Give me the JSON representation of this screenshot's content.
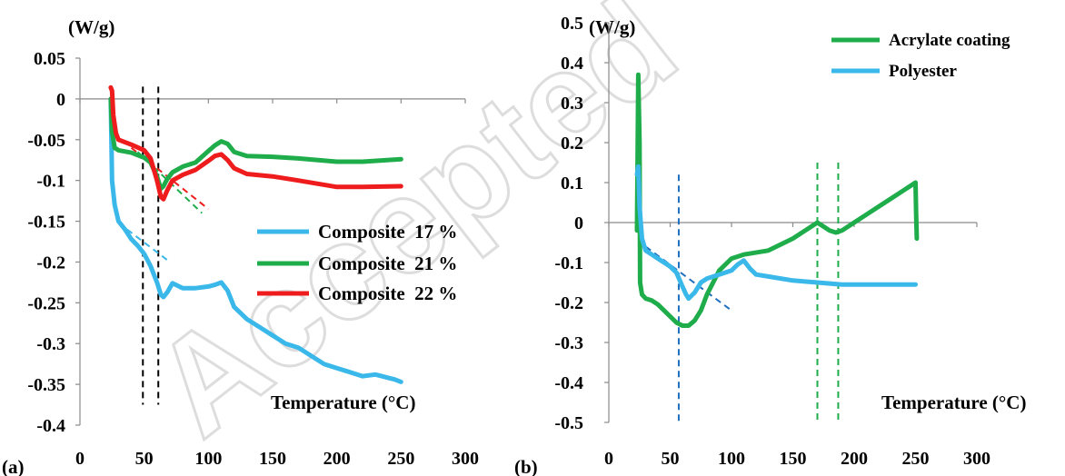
{
  "watermark": "Accepted",
  "chart_data": [
    {
      "type": "line",
      "panel_label": "(a)",
      "ylabel": "(W/g)",
      "xlabel": "Temperature (°C)",
      "xlim": [
        0,
        300
      ],
      "ylim": [
        -0.4,
        0.05
      ],
      "xticks": [
        "0",
        "50",
        "100",
        "150",
        "200",
        "250",
        "300"
      ],
      "yticks": [
        "0.05",
        "0",
        "-0.05",
        "-0.1",
        "-0.15",
        "-0.2",
        "-0.25",
        "-0.3",
        "-0.35",
        "-0.4"
      ],
      "legend_position": "center-right",
      "series": [
        {
          "name": "Composite  17 %",
          "color": "#3ab8ea",
          "x": [
            24,
            25,
            27,
            30,
            35,
            40,
            45,
            50,
            55,
            60,
            63,
            65,
            68,
            72,
            80,
            90,
            100,
            105,
            110,
            115,
            120,
            130,
            140,
            150,
            160,
            170,
            180,
            190,
            200,
            210,
            220,
            230,
            235,
            240,
            245,
            250
          ],
          "y": [
            0.0,
            -0.1,
            -0.13,
            -0.15,
            -0.16,
            -0.172,
            -0.18,
            -0.19,
            -0.205,
            -0.225,
            -0.24,
            -0.243,
            -0.237,
            -0.226,
            -0.232,
            -0.232,
            -0.23,
            -0.228,
            -0.225,
            -0.235,
            -0.255,
            -0.27,
            -0.28,
            -0.29,
            -0.3,
            -0.305,
            -0.315,
            -0.325,
            -0.33,
            -0.335,
            -0.34,
            -0.338,
            -0.34,
            -0.342,
            -0.344,
            -0.347
          ]
        },
        {
          "name": "Composite  21 %",
          "color": "#1fad4b",
          "x": [
            24,
            25,
            27,
            30,
            40,
            50,
            55,
            60,
            63,
            65,
            68,
            72,
            80,
            90,
            100,
            105,
            110,
            115,
            120,
            130,
            150,
            170,
            200,
            220,
            250
          ],
          "y": [
            0.0,
            -0.04,
            -0.06,
            -0.063,
            -0.066,
            -0.072,
            -0.078,
            -0.095,
            -0.11,
            -0.107,
            -0.098,
            -0.09,
            -0.083,
            -0.078,
            -0.064,
            -0.057,
            -0.052,
            -0.055,
            -0.065,
            -0.07,
            -0.071,
            -0.073,
            -0.077,
            -0.077,
            -0.074
          ]
        },
        {
          "name": "Composite  22 %",
          "color": "#ee1c1c",
          "x": [
            24,
            25,
            26,
            28,
            30,
            40,
            50,
            55,
            60,
            63,
            65,
            68,
            72,
            80,
            90,
            100,
            105,
            110,
            115,
            120,
            130,
            150,
            170,
            200,
            220,
            250
          ],
          "y": [
            0.014,
            0.01,
            -0.02,
            -0.042,
            -0.05,
            -0.056,
            -0.063,
            -0.073,
            -0.1,
            -0.12,
            -0.123,
            -0.112,
            -0.1,
            -0.093,
            -0.087,
            -0.076,
            -0.07,
            -0.068,
            -0.075,
            -0.085,
            -0.092,
            -0.095,
            -0.1,
            -0.108,
            -0.108,
            -0.107
          ]
        }
      ],
      "dashed_verticals": [
        {
          "x": 49,
          "y_from": -0.375,
          "y_to": 0.015,
          "color": "#000000"
        },
        {
          "x": 61,
          "y_from": -0.375,
          "y_to": 0.015,
          "color": "#000000"
        }
      ],
      "tangents": [
        {
          "x1": 40,
          "y1": -0.06,
          "x2": 100,
          "y2": -0.135,
          "color": "#ee1c1c"
        },
        {
          "x1": 45,
          "y1": -0.065,
          "x2": 95,
          "y2": -0.14,
          "color": "#1fad4b"
        },
        {
          "x1": 30,
          "y1": -0.152,
          "x2": 70,
          "y2": -0.2,
          "color": "#3ab8ea"
        }
      ]
    },
    {
      "type": "line",
      "panel_label": "(b)",
      "ylabel": "(W/g)",
      "xlabel": "Temperature (°C)",
      "xlim": [
        0,
        300
      ],
      "ylim": [
        -0.5,
        0.5
      ],
      "xticks": [
        "0",
        "50",
        "100",
        "150",
        "200",
        "250",
        "300"
      ],
      "yticks": [
        "0.5",
        "0.4",
        "0.3",
        "0.2",
        "0.1",
        "0",
        "-0.1",
        "-0.2",
        "-0.3",
        "-0.4",
        "-0.5"
      ],
      "legend_position": "top-right",
      "series": [
        {
          "name": "Acrylate coating",
          "color": "#1fad4b",
          "x": [
            23,
            24,
            25,
            25.5,
            27,
            30,
            35,
            40,
            45,
            50,
            55,
            60,
            65,
            70,
            75,
            80,
            90,
            100,
            110,
            130,
            150,
            160,
            165,
            170,
            175,
            180,
            185,
            190,
            200,
            210,
            220,
            230,
            240,
            245,
            250,
            250.5,
            251
          ],
          "y": [
            -0.02,
            0.37,
            0.2,
            -0.15,
            -0.18,
            -0.19,
            -0.195,
            -0.205,
            -0.22,
            -0.235,
            -0.25,
            -0.258,
            -0.258,
            -0.245,
            -0.22,
            -0.18,
            -0.12,
            -0.09,
            -0.08,
            -0.07,
            -0.04,
            -0.02,
            -0.01,
            0.0,
            -0.01,
            -0.02,
            -0.025,
            -0.02,
            0.0,
            0.02,
            0.04,
            0.06,
            0.08,
            0.09,
            0.1,
            0.02,
            -0.04
          ]
        },
        {
          "name": "Polyester",
          "color": "#3ab8ea",
          "x": [
            23,
            24,
            25,
            27,
            30,
            35,
            40,
            45,
            50,
            55,
            60,
            63,
            65,
            70,
            75,
            80,
            90,
            100,
            105,
            110,
            115,
            120,
            130,
            150,
            170,
            190,
            200,
            220,
            240,
            250
          ],
          "y": [
            0.12,
            0.14,
            0.04,
            -0.04,
            -0.07,
            -0.08,
            -0.09,
            -0.1,
            -0.11,
            -0.125,
            -0.16,
            -0.18,
            -0.19,
            -0.175,
            -0.15,
            -0.14,
            -0.13,
            -0.12,
            -0.105,
            -0.095,
            -0.115,
            -0.13,
            -0.135,
            -0.145,
            -0.15,
            -0.155,
            -0.155,
            -0.155,
            -0.155,
            -0.155
          ]
        }
      ],
      "dashed_verticals": [
        {
          "x": 57,
          "y_from": -0.5,
          "y_to": 0.12,
          "color": "#1f6fbf"
        },
        {
          "x": 170,
          "y_from": -0.5,
          "y_to": 0.15,
          "color": "#1fad4b"
        },
        {
          "x": 187,
          "y_from": -0.5,
          "y_to": 0.15,
          "color": "#1fad4b"
        }
      ],
      "tangents": [
        {
          "x1": 30,
          "y1": -0.06,
          "x2": 100,
          "y2": -0.22,
          "color": "#1f6fbf"
        }
      ]
    }
  ]
}
